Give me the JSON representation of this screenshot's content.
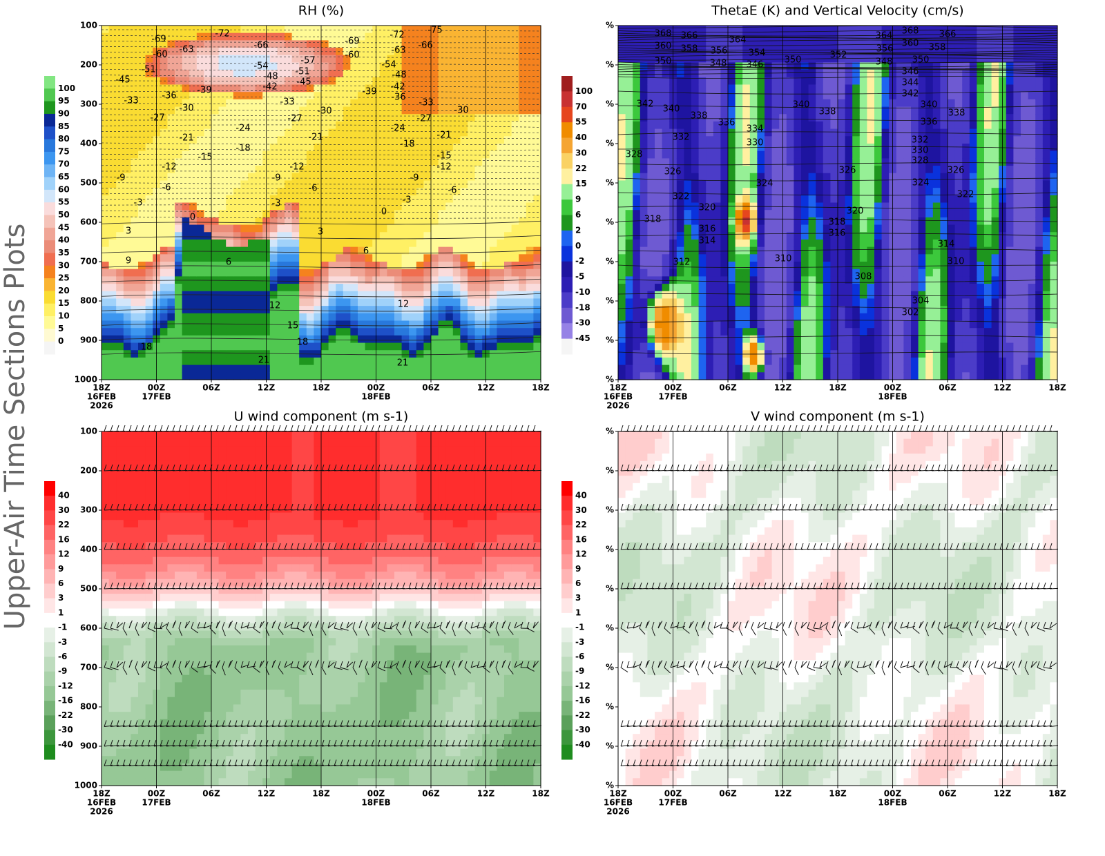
{
  "side_title": "Upper-Air Time Sections Plots",
  "chart_data": [
    {
      "type": "contour",
      "title": "RH (%)",
      "xlim": [
        0,
        48
      ],
      "xticks": [
        {
          "value": 0,
          "label": "18Z"
        },
        {
          "value": 6,
          "label": "00Z"
        },
        {
          "value": 12,
          "label": "06Z"
        },
        {
          "value": 18,
          "label": "12Z"
        },
        {
          "value": 24,
          "label": "18Z"
        },
        {
          "value": 30,
          "label": "00Z"
        },
        {
          "value": 36,
          "label": "06Z"
        },
        {
          "value": 42,
          "label": "12Z"
        },
        {
          "value": 48,
          "label": "18Z"
        }
      ],
      "xtick_dates": [
        {
          "value": 0,
          "label": "16FEB"
        },
        {
          "value": 6,
          "label": "17FEB"
        },
        {
          "value": 30,
          "label": "18FEB"
        }
      ],
      "xtick_year": {
        "value": 0,
        "label": "2026"
      },
      "ylim": [
        1000,
        100
      ],
      "yticks": [
        100,
        200,
        300,
        400,
        500,
        600,
        700,
        800,
        900,
        1000
      ],
      "grid": true,
      "colorbar": {
        "levels": [
          100,
          95,
          90,
          85,
          80,
          75,
          70,
          65,
          60,
          55,
          50,
          45,
          40,
          35,
          30,
          25,
          20,
          15,
          10,
          5,
          0
        ],
        "colors": [
          "#82e682",
          "#50c850",
          "#1e961e",
          "#0a2896",
          "#1e50c8",
          "#2878dc",
          "#3c96f0",
          "#6eb4f5",
          "#a0d2fa",
          "#d2e6fa",
          "#fadcdc",
          "#f5c3b9",
          "#f0a596",
          "#eb8c78",
          "#f06e50",
          "#f5821e",
          "#fab432",
          "#fadc32",
          "#fff064",
          "#fffa96",
          "#fffad2",
          "#f5f5f5"
        ]
      },
      "contour_labels": [
        -72,
        -69,
        -69,
        -72,
        -75,
        -66,
        -63,
        -60,
        -60,
        -63,
        -66,
        -54,
        -57,
        -51,
        -51,
        -54,
        -48,
        -48,
        -45,
        -45,
        -42,
        -42,
        -39,
        -39,
        -36,
        -36,
        -33,
        -33,
        -33,
        -30,
        -30,
        -30,
        -27,
        -27,
        -27,
        -24,
        -24,
        -21,
        -21,
        -21,
        -18,
        -18,
        -15,
        -15,
        -12,
        -12,
        -12,
        -9,
        -9,
        -9,
        -6,
        -6,
        -6,
        -3,
        -3,
        -3,
        0,
        0,
        3,
        3,
        6,
        6,
        9,
        12,
        12,
        15,
        18,
        18,
        21,
        21
      ]
    },
    {
      "type": "contour",
      "title": "ThetaE (K) and Vertical Velocity (cm/s)",
      "xlim": [
        0,
        48
      ],
      "xticks": [
        {
          "value": 0,
          "label": "18Z"
        },
        {
          "value": 6,
          "label": "00Z"
        },
        {
          "value": 12,
          "label": "06Z"
        },
        {
          "value": 18,
          "label": "12Z"
        },
        {
          "value": 24,
          "label": "18Z"
        },
        {
          "value": 30,
          "label": "00Z"
        },
        {
          "value": 36,
          "label": "06Z"
        },
        {
          "value": 42,
          "label": "12Z"
        },
        {
          "value": 48,
          "label": "18Z"
        }
      ],
      "xtick_dates": [
        {
          "value": 0,
          "label": "16FEB"
        },
        {
          "value": 6,
          "label": "17FEB"
        },
        {
          "value": 30,
          "label": "18FEB"
        }
      ],
      "xtick_year": {
        "value": 0,
        "label": "2026"
      },
      "ylim": [
        1000,
        100
      ],
      "yticks": [
        {
          "value": 100,
          "label": "%"
        },
        {
          "value": 200,
          "label": "%"
        },
        {
          "value": 300,
          "label": "%"
        },
        {
          "value": 400,
          "label": "%"
        },
        {
          "value": 500,
          "label": "%"
        },
        {
          "value": 600,
          "label": "%"
        },
        {
          "value": 700,
          "label": "%"
        },
        {
          "value": 800,
          "label": "%"
        },
        {
          "value": 900,
          "label": "%"
        },
        {
          "value": 1000,
          "label": "%"
        }
      ],
      "grid": true,
      "colorbar": {
        "levels": [
          100,
          70,
          55,
          40,
          30,
          22,
          15,
          9,
          6,
          2,
          0,
          -2,
          -5,
          -10,
          -18,
          -30,
          -45
        ],
        "colors": [
          "#a01e1e",
          "#c83232",
          "#e6461e",
          "#f08c00",
          "#f5a532",
          "#fad264",
          "#fff0a0",
          "#96f096",
          "#3cc83c",
          "#1e961e",
          "#1e64f0",
          "#0a32dc",
          "#1e14a0",
          "#2d1eb4",
          "#4b3cc8",
          "#6e5ad2",
          "#9682e6",
          "#f5f5f5"
        ]
      },
      "contour_labels": [
        368,
        366,
        364,
        364,
        368,
        366,
        360,
        358,
        356,
        354,
        356,
        360,
        358,
        352,
        350,
        348,
        346,
        350,
        348,
        350,
        346,
        344,
        342,
        342,
        340,
        338,
        340,
        338,
        340,
        338,
        336,
        334,
        336,
        332,
        330,
        332,
        330,
        328,
        328,
        326,
        326,
        326,
        324,
        324,
        322,
        322,
        320,
        320,
        318,
        318,
        316,
        316,
        314,
        314,
        312,
        310,
        310,
        308,
        304,
        302
      ]
    },
    {
      "type": "contour",
      "title": "U wind component (m s-1)",
      "xlim": [
        0,
        48
      ],
      "xticks": [
        {
          "value": 0,
          "label": "18Z"
        },
        {
          "value": 6,
          "label": "00Z"
        },
        {
          "value": 12,
          "label": "06Z"
        },
        {
          "value": 18,
          "label": "12Z"
        },
        {
          "value": 24,
          "label": "18Z"
        },
        {
          "value": 30,
          "label": "00Z"
        },
        {
          "value": 36,
          "label": "06Z"
        },
        {
          "value": 42,
          "label": "12Z"
        },
        {
          "value": 48,
          "label": "18Z"
        }
      ],
      "xtick_dates": [
        {
          "value": 0,
          "label": "16FEB"
        },
        {
          "value": 6,
          "label": "17FEB"
        },
        {
          "value": 30,
          "label": "18FEB"
        }
      ],
      "xtick_year": {
        "value": 0,
        "label": "2026"
      },
      "ylim": [
        1000,
        100
      ],
      "yticks": [
        100,
        200,
        300,
        400,
        500,
        600,
        700,
        800,
        900,
        1000
      ],
      "grid": true,
      "colorbar": {
        "levels": [
          40,
          30,
          22,
          16,
          12,
          9,
          6,
          3,
          1,
          -1,
          -3,
          -6,
          -9,
          -12,
          -16,
          -22,
          -30,
          -40
        ],
        "colors": [
          "#ff0000",
          "#ff2d2d",
          "#ff4646",
          "#ff6464",
          "#ff8282",
          "#ff9b9b",
          "#ffb4b4",
          "#ffcdcd",
          "#ffe6e6",
          "#ffffff",
          "#e6f0e6",
          "#d2e6d2",
          "#bedcbe",
          "#aad2aa",
          "#96c896",
          "#78b478",
          "#5aa05a",
          "#3c963c",
          "#1e8c1e"
        ]
      }
    },
    {
      "type": "contour",
      "title": "V wind component (m s-1)",
      "xlim": [
        0,
        48
      ],
      "xticks": [
        {
          "value": 0,
          "label": "18Z"
        },
        {
          "value": 6,
          "label": "00Z"
        },
        {
          "value": 12,
          "label": "06Z"
        },
        {
          "value": 18,
          "label": "12Z"
        },
        {
          "value": 24,
          "label": "18Z"
        },
        {
          "value": 30,
          "label": "00Z"
        },
        {
          "value": 36,
          "label": "06Z"
        },
        {
          "value": 42,
          "label": "12Z"
        },
        {
          "value": 48,
          "label": "18Z"
        }
      ],
      "xtick_dates": [
        {
          "value": 0,
          "label": "16FEB"
        },
        {
          "value": 6,
          "label": "17FEB"
        },
        {
          "value": 30,
          "label": "18FEB"
        }
      ],
      "xtick_year": {
        "value": 0,
        "label": "2026"
      },
      "ylim": [
        1000,
        100
      ],
      "yticks": [
        {
          "value": 100,
          "label": "%"
        },
        {
          "value": 200,
          "label": "%"
        },
        {
          "value": 300,
          "label": "%"
        },
        {
          "value": 400,
          "label": "%"
        },
        {
          "value": 500,
          "label": "%"
        },
        {
          "value": 600,
          "label": "%"
        },
        {
          "value": 700,
          "label": "%"
        },
        {
          "value": 800,
          "label": "%"
        },
        {
          "value": 900,
          "label": "%"
        },
        {
          "value": 1000,
          "label": "%"
        }
      ],
      "grid": true,
      "colorbar": {
        "levels": [
          40,
          30,
          22,
          16,
          12,
          9,
          6,
          3,
          1,
          -1,
          -3,
          -6,
          -9,
          -12,
          -16,
          -22,
          -30,
          -40
        ],
        "colors": [
          "#ff0000",
          "#ff2d2d",
          "#ff4646",
          "#ff6464",
          "#ff8282",
          "#ff9b9b",
          "#ffb4b4",
          "#ffcdcd",
          "#ffe6e6",
          "#ffffff",
          "#e6f0e6",
          "#d2e6d2",
          "#bedcbe",
          "#aad2aa",
          "#96c896",
          "#78b478",
          "#5aa05a",
          "#3c963c",
          "#1e8c1e"
        ]
      }
    }
  ]
}
